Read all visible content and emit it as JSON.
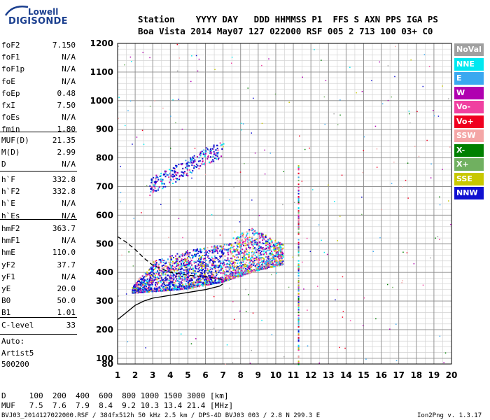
{
  "logo": {
    "line1": "Lowell",
    "line2": "DIGISONDE"
  },
  "header": {
    "row1": "Station    YYYY DAY   DDD HHMMSS P1  FFS S AXN PPS IGA PS",
    "row2": "Boa Vista 2014 May07 127 022000 RSF 005 2 713 100 03+ C0"
  },
  "params_block1": [
    {
      "name": "foF2",
      "value": "7.150"
    },
    {
      "name": "foF1",
      "value": "N/A"
    },
    {
      "name": "foF1p",
      "value": "N/A"
    },
    {
      "name": "foE",
      "value": "N/A"
    },
    {
      "name": "foEp",
      "value": "0.48"
    },
    {
      "name": "fxI",
      "value": "7.50"
    },
    {
      "name": "foEs",
      "value": "N/A"
    },
    {
      "name": "fmin",
      "value": "1.80"
    }
  ],
  "params_block2": [
    {
      "name": "MUF(D)",
      "value": "21.35"
    },
    {
      "name": "M(D)",
      "value": "2.99"
    },
    {
      "name": "D",
      "value": "N/A"
    }
  ],
  "params_block3": [
    {
      "name": "h`F",
      "value": "332.8"
    },
    {
      "name": "h`F2",
      "value": "332.8"
    },
    {
      "name": "h`E",
      "value": "N/A"
    },
    {
      "name": "h`Es",
      "value": "N/A"
    }
  ],
  "params_block4": [
    {
      "name": "hmF2",
      "value": "363.7"
    },
    {
      "name": "hmF1",
      "value": "N/A"
    },
    {
      "name": "hmE",
      "value": "110.0"
    },
    {
      "name": "yF2",
      "value": "37.7"
    },
    {
      "name": "yF1",
      "value": "N/A"
    },
    {
      "name": "yE",
      "value": "20.0"
    },
    {
      "name": "B0",
      "value": "50.0"
    },
    {
      "name": "B1",
      "value": "1.01"
    }
  ],
  "params_block5": [
    {
      "name": "C-level",
      "value": "33"
    }
  ],
  "auto": {
    "line1": "Auto:",
    "line2": "Artist5",
    "line3": "500200"
  },
  "legend": [
    {
      "label": "NoVal",
      "color": "#a0a0a0"
    },
    {
      "label": "NNE",
      "color": "#00e8f0"
    },
    {
      "label": "E",
      "color": "#3aa8f0"
    },
    {
      "label": "W",
      "color": "#b000b0"
    },
    {
      "label": "Vo-",
      "color": "#f040a0"
    },
    {
      "label": "Vo+",
      "color": "#f00020"
    },
    {
      "label": "SSW",
      "color": "#f4a6a6"
    },
    {
      "label": "X-",
      "color": "#008000"
    },
    {
      "label": "X+",
      "color": "#70b060"
    },
    {
      "label": "SSE",
      "color": "#c8c800"
    },
    {
      "label": "NNW",
      "color": "#1010d0"
    }
  ],
  "mufrow": {
    "d_line": "D     100  200  400  600  800 1000 1500 3000 [km]",
    "muf_line": "MUF   7.5  7.6  7.9  8.4  9.2 10.3 13.4 21.4 [MHz]"
  },
  "footer": {
    "left": "BVJ03_2014127022000.RSF / 384fx512h 50 kHz 2.5 km / DPS-4D BVJ03 003 / 2.8 N 299.3 E",
    "right": "Ion2Png v. 1.3.17"
  },
  "chart_data": {
    "type": "scatter",
    "title": "",
    "xlabel": "",
    "ylabel": "",
    "xlim": [
      1,
      20
    ],
    "ylim": [
      80,
      1200
    ],
    "x_ticks": [
      1,
      2,
      3,
      4,
      5,
      6,
      7,
      8,
      9,
      10,
      11,
      12,
      13,
      14,
      15,
      16,
      17,
      18,
      19,
      20
    ],
    "y_ticks": [
      80,
      100,
      200,
      300,
      400,
      500,
      600,
      700,
      800,
      900,
      1000,
      1100,
      1200
    ],
    "y_gridlines_minor_step": 20,
    "x_gridlines_minor_step": 0.5,
    "grid": true,
    "legend_position": "right",
    "traces": [
      {
        "name": "F2 echo band",
        "x_range": [
          1.8,
          10.4
        ],
        "h_bottom_at": [
          [
            1.8,
            330
          ],
          [
            3,
            335
          ],
          [
            5,
            345
          ],
          [
            7,
            370
          ],
          [
            9,
            410
          ],
          [
            10.4,
            430
          ]
        ],
        "h_top_at": [
          [
            1.8,
            350
          ],
          [
            3,
            440
          ],
          [
            5,
            480
          ],
          [
            7,
            500
          ],
          [
            8.5,
            560
          ],
          [
            10.4,
            500
          ]
        ]
      },
      {
        "name": "multi-hop echo",
        "x_range": [
          2.8,
          7.0
        ],
        "h_at": [
          [
            2.8,
            690
          ],
          [
            4,
            730
          ],
          [
            5,
            760
          ],
          [
            6,
            800
          ],
          [
            7,
            820
          ]
        ]
      },
      {
        "name": "vertical streak",
        "x": 11.3,
        "h_range": [
          80,
          780
        ]
      }
    ],
    "profile_solid": [
      [
        1.0,
        235
      ],
      [
        1.5,
        260
      ],
      [
        2,
        285
      ],
      [
        2.5,
        300
      ],
      [
        3,
        310
      ],
      [
        4,
        320
      ],
      [
        5,
        330
      ],
      [
        6,
        340
      ],
      [
        6.8,
        352
      ],
      [
        7.0,
        360
      ]
    ],
    "profile_dashed": [
      [
        1.0,
        525
      ],
      [
        1.5,
        505
      ],
      [
        2,
        480
      ],
      [
        2.5,
        450
      ],
      [
        3,
        425
      ],
      [
        4,
        400
      ],
      [
        5,
        390
      ],
      [
        6,
        385
      ],
      [
        7,
        375
      ]
    ]
  }
}
